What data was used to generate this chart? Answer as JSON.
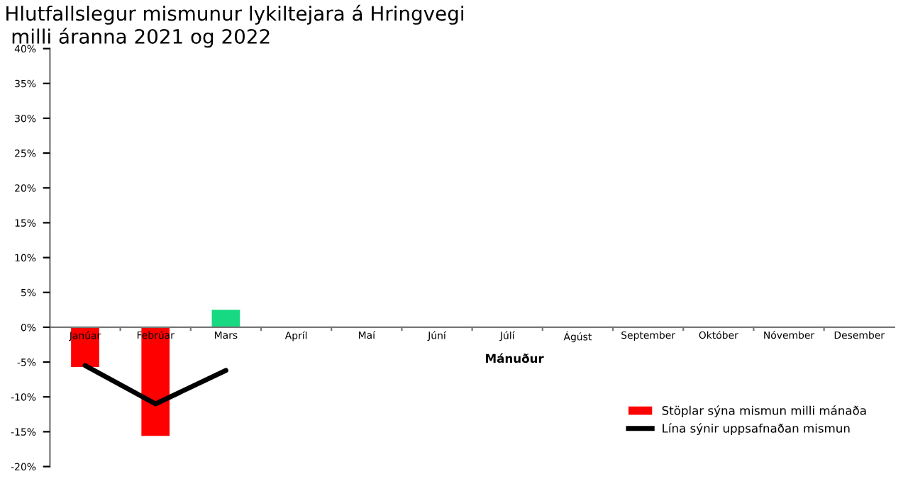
{
  "chart_data": {
    "type": "bar",
    "title": "Hlutfallslegur mismunur lykiltejara á Hringvegi\n milli áranna 2021 og 2022",
    "xlabel": "Mánuður",
    "categories": [
      "Janúar",
      "Febrúar",
      "Mars",
      "Apríl",
      "Maí",
      "Júní",
      "Júlí",
      "Ágúst",
      "September",
      "Október",
      "Nóvember",
      "Desember"
    ],
    "series": [
      {
        "name": "Stöplar sýna mismun milli mánaða",
        "colors": [
          "#ff0000",
          "#ff0000",
          "#16d982",
          null,
          null,
          null,
          null,
          null,
          null,
          null,
          null,
          null
        ],
        "values": [
          -5.7,
          -15.6,
          2.5,
          null,
          null,
          null,
          null,
          null,
          null,
          null,
          null,
          null
        ]
      },
      {
        "name": "Lína sýnir uppsafnaðan mismun",
        "type": "line",
        "color": "#000000",
        "values": [
          -5.5,
          -11.0,
          -6.2,
          null,
          null,
          null,
          null,
          null,
          null,
          null,
          null,
          null
        ]
      }
    ],
    "ylim": [
      -20,
      40
    ],
    "yticks": [
      {
        "value": -20,
        "label": "-20%"
      },
      {
        "value": -15,
        "label": "-15%"
      },
      {
        "value": -10,
        "label": "-10%"
      },
      {
        "value": -5,
        "label": "-5%"
      },
      {
        "value": 0,
        "label": "0%"
      },
      {
        "value": 5,
        "label": "5%"
      },
      {
        "value": 10,
        "label": "10%"
      },
      {
        "value": 15,
        "label": "15%"
      },
      {
        "value": 20,
        "label": "20%"
      },
      {
        "value": 25,
        "label": "25%"
      },
      {
        "value": 30,
        "label": "30%"
      },
      {
        "value": 35,
        "label": "35%"
      },
      {
        "value": 40,
        "label": "40%"
      }
    ],
    "grid": false,
    "legend": "bottom right"
  }
}
